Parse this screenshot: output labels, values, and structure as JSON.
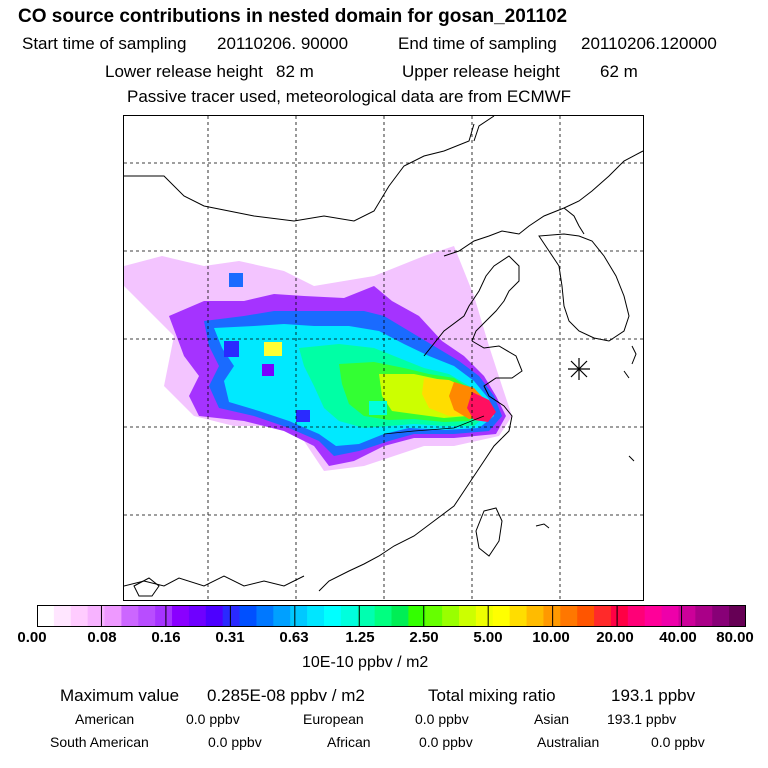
{
  "title": "CO  source contributions in nested domain for gosan_201102",
  "sampling": {
    "start_label": "Start time of sampling",
    "start_value": "20110206. 90000",
    "end_label": "End time of sampling",
    "end_value": "20110206.120000"
  },
  "release": {
    "lower_label": "Lower release height",
    "lower_value": "82 m",
    "upper_label": "Upper release height",
    "upper_value": "62 m"
  },
  "note": "Passive tracer used, meteorological data are from ECMWF",
  "colorbar": {
    "tick_labels": [
      "0.00",
      "0.08",
      "0.16",
      "0.31",
      "0.63",
      "1.25",
      "2.50",
      "5.00",
      "10.00",
      "20.00",
      "40.00",
      "80.00"
    ],
    "unit": "10E-10 ppbv / m2",
    "colors": [
      "#ffffff",
      "#ffe6ff",
      "#ffccff",
      "#f7b3ff",
      "#ee99ff",
      "#cc66ff",
      "#b84dff",
      "#a633ff",
      "#8a00ff",
      "#6f00ff",
      "#4d00ff",
      "#2a2aff",
      "#0050ff",
      "#0078ff",
      "#00a0ff",
      "#00c8ff",
      "#00e6ff",
      "#00ffff",
      "#00ffdd",
      "#00ffb0",
      "#00ff80",
      "#00ee55",
      "#33ff00",
      "#66ff00",
      "#99ff00",
      "#ccff00",
      "#eeff00",
      "#ffff00",
      "#ffdd00",
      "#ffbb00",
      "#ff9900",
      "#ff7700",
      "#ff5500",
      "#ff2a2a",
      "#ff0044",
      "#ff0077",
      "#ff0099",
      "#ee00aa",
      "#cc0099",
      "#aa0088",
      "#880077",
      "#660055"
    ]
  },
  "summary": {
    "max_label": "Maximum value",
    "max_value": "0.285E-08 ppbv / m2",
    "total_label": "Total mixing ratio",
    "total_value": "193.1 ppbv"
  },
  "regions": [
    {
      "name": "American",
      "value": "0.0 ppbv"
    },
    {
      "name": "European",
      "value": "0.0 ppbv"
    },
    {
      "name": "Asian",
      "value": "193.1 ppbv"
    },
    {
      "name": "South American",
      "value": "0.0 ppbv"
    },
    {
      "name": "African",
      "value": "0.0 ppbv"
    },
    {
      "name": "Australian",
      "value": "0.0 ppbv"
    }
  ]
}
